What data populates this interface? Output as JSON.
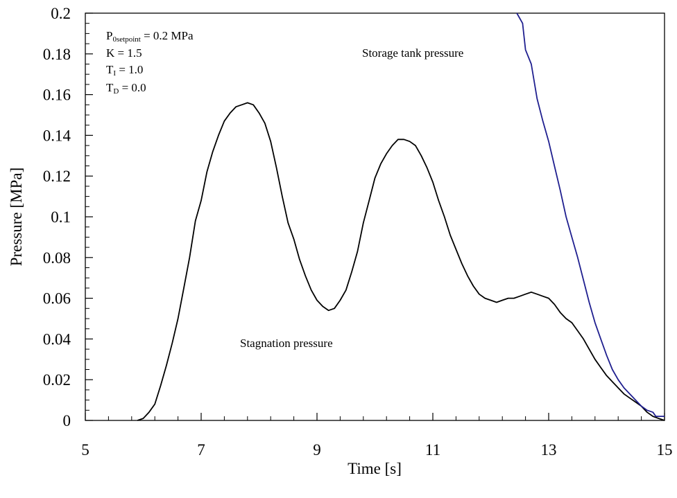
{
  "chart_data": {
    "type": "line",
    "title": "",
    "xlabel": "Time [s]",
    "ylabel": "Pressure [MPa]",
    "xlim": [
      5,
      15
    ],
    "ylim": [
      0,
      0.2
    ],
    "x_ticks": [
      5,
      7,
      9,
      11,
      13,
      15
    ],
    "x_tick_labels": [
      "5",
      "7",
      "9",
      "11",
      "13",
      "15"
    ],
    "y_ticks": [
      0,
      0.02,
      0.04,
      0.06,
      0.08,
      0.1,
      0.12,
      0.14,
      0.16,
      0.18,
      0.2
    ],
    "y_tick_labels": [
      "0",
      "0.02",
      "0.04",
      "0.06",
      "0.08",
      "0.1",
      "0.12",
      "0.14",
      "0.16",
      "0.18",
      "0.2"
    ],
    "x_minor_step": 0.4,
    "y_minor_step": 0.005,
    "grid": false,
    "legend": "none",
    "series": [
      {
        "color": "#000000",
        "points": [
          [
            5.9,
            0.0
          ],
          [
            6.0,
            0.001
          ],
          [
            6.1,
            0.004
          ],
          [
            6.2,
            0.008
          ],
          [
            6.3,
            0.017
          ],
          [
            6.4,
            0.027
          ],
          [
            6.5,
            0.038
          ],
          [
            6.6,
            0.05
          ],
          [
            6.7,
            0.065
          ],
          [
            6.8,
            0.08
          ],
          [
            6.9,
            0.098
          ],
          [
            7.0,
            0.108
          ],
          [
            7.1,
            0.122
          ],
          [
            7.2,
            0.132
          ],
          [
            7.3,
            0.14
          ],
          [
            7.4,
            0.147
          ],
          [
            7.5,
            0.151
          ],
          [
            7.6,
            0.154
          ],
          [
            7.7,
            0.155
          ],
          [
            7.8,
            0.156
          ],
          [
            7.9,
            0.155
          ],
          [
            8.0,
            0.151
          ],
          [
            8.1,
            0.146
          ],
          [
            8.2,
            0.137
          ],
          [
            8.3,
            0.124
          ],
          [
            8.4,
            0.11
          ],
          [
            8.5,
            0.097
          ],
          [
            8.6,
            0.089
          ],
          [
            8.7,
            0.079
          ],
          [
            8.8,
            0.071
          ],
          [
            8.9,
            0.064
          ],
          [
            9.0,
            0.059
          ],
          [
            9.1,
            0.056
          ],
          [
            9.2,
            0.054
          ],
          [
            9.3,
            0.055
          ],
          [
            9.4,
            0.059
          ],
          [
            9.5,
            0.064
          ],
          [
            9.6,
            0.073
          ],
          [
            9.7,
            0.083
          ],
          [
            9.8,
            0.097
          ],
          [
            9.9,
            0.108
          ],
          [
            10.0,
            0.119
          ],
          [
            10.1,
            0.126
          ],
          [
            10.2,
            0.131
          ],
          [
            10.3,
            0.135
          ],
          [
            10.4,
            0.138
          ],
          [
            10.5,
            0.138
          ],
          [
            10.6,
            0.137
          ],
          [
            10.7,
            0.135
          ],
          [
            10.8,
            0.13
          ],
          [
            10.9,
            0.124
          ],
          [
            11.0,
            0.117
          ],
          [
            11.1,
            0.108
          ],
          [
            11.2,
            0.1
          ],
          [
            11.3,
            0.091
          ],
          [
            11.4,
            0.084
          ],
          [
            11.5,
            0.077
          ],
          [
            11.6,
            0.071
          ],
          [
            11.7,
            0.066
          ],
          [
            11.8,
            0.062
          ],
          [
            11.9,
            0.06
          ],
          [
            12.0,
            0.059
          ],
          [
            12.1,
            0.058
          ],
          [
            12.2,
            0.059
          ],
          [
            12.3,
            0.06
          ],
          [
            12.4,
            0.06
          ],
          [
            12.5,
            0.061
          ],
          [
            12.6,
            0.062
          ],
          [
            12.7,
            0.063
          ],
          [
            12.8,
            0.062
          ],
          [
            12.9,
            0.061
          ],
          [
            13.0,
            0.06
          ],
          [
            13.1,
            0.057
          ],
          [
            13.2,
            0.053
          ],
          [
            13.3,
            0.05
          ],
          [
            13.4,
            0.048
          ],
          [
            13.5,
            0.044
          ],
          [
            13.6,
            0.04
          ],
          [
            13.7,
            0.035
          ],
          [
            13.8,
            0.03
          ],
          [
            13.9,
            0.026
          ],
          [
            14.0,
            0.022
          ],
          [
            14.1,
            0.019
          ],
          [
            14.2,
            0.016
          ],
          [
            14.3,
            0.013
          ],
          [
            14.4,
            0.011
          ],
          [
            14.5,
            0.009
          ],
          [
            14.6,
            0.007
          ],
          [
            14.7,
            0.004
          ],
          [
            14.8,
            0.002
          ],
          [
            14.9,
            0.001
          ],
          [
            15.0,
            0.0
          ]
        ]
      },
      {
        "color": "#1f1f8f",
        "points": [
          [
            12.45,
            0.2
          ],
          [
            12.55,
            0.195
          ],
          [
            12.6,
            0.182
          ],
          [
            12.7,
            0.175
          ],
          [
            12.8,
            0.158
          ],
          [
            12.9,
            0.147
          ],
          [
            13.0,
            0.137
          ],
          [
            13.1,
            0.125
          ],
          [
            13.2,
            0.113
          ],
          [
            13.3,
            0.1
          ],
          [
            13.4,
            0.09
          ],
          [
            13.5,
            0.08
          ],
          [
            13.6,
            0.069
          ],
          [
            13.7,
            0.058
          ],
          [
            13.8,
            0.048
          ],
          [
            13.9,
            0.04
          ],
          [
            14.0,
            0.032
          ],
          [
            14.1,
            0.025
          ],
          [
            14.2,
            0.02
          ],
          [
            14.3,
            0.016
          ],
          [
            14.4,
            0.013
          ],
          [
            14.5,
            0.01
          ],
          [
            14.6,
            0.007
          ],
          [
            14.7,
            0.005
          ],
          [
            14.8,
            0.004
          ],
          [
            14.85,
            0.002
          ],
          [
            15.0,
            0.002
          ]
        ]
      }
    ],
    "annotations": {
      "stagnation": "Stagnation pressure",
      "storage": "Storage tank pressure"
    },
    "parameters": [
      {
        "main": "P",
        "sub": "0setpoint",
        "rest": " = 0.2 MPa"
      },
      {
        "main": "K = 1.5",
        "sub": "",
        "rest": ""
      },
      {
        "main": "T",
        "sub": "I",
        "rest": " = 1.0"
      },
      {
        "main": "T",
        "sub": "D",
        "rest": " = 0.0"
      }
    ]
  }
}
